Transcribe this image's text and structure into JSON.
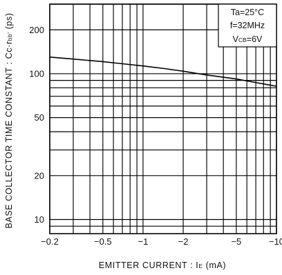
{
  "chart_data": {
    "type": "line",
    "xlabel_main": "EMITTER  CURRENT : I",
    "xlabel_sub": "E",
    "xlabel_unit": " (mA)",
    "ylabel_main": "BASE  COLLECTOR  TIME  CONSTANT : Cc·r",
    "ylabel_sub": "bb'",
    "ylabel_unit": " (ps)",
    "x_scale": "log",
    "y_scale": "log",
    "xlim": [
      -0.2,
      -10
    ],
    "ylim": [
      8,
      300
    ],
    "x_ticks": [
      {
        "value": -0.2,
        "label": "−0.2"
      },
      {
        "value": -0.5,
        "label": "−0.5"
      },
      {
        "value": -1,
        "label": "−1"
      },
      {
        "value": -2,
        "label": "−2"
      },
      {
        "value": -5,
        "label": "−5"
      },
      {
        "value": -10,
        "label": "−10"
      }
    ],
    "y_ticks": [
      {
        "value": 10,
        "label": "10"
      },
      {
        "value": 20,
        "label": "20"
      },
      {
        "value": 50,
        "label": "50"
      },
      {
        "value": 100,
        "label": "100"
      },
      {
        "value": 200,
        "label": "200"
      }
    ],
    "x_grid": [
      -0.2,
      -0.3,
      -0.4,
      -0.5,
      -0.6,
      -0.7,
      -0.8,
      -0.9,
      -1,
      -2,
      -3,
      -4,
      -5,
      -6,
      -7,
      -8,
      -9,
      -10
    ],
    "y_grid": [
      9,
      10,
      20,
      30,
      40,
      50,
      60,
      70,
      80,
      90,
      100,
      200,
      300
    ],
    "grid": true,
    "annotations": [
      {
        "main": "Ta=25°C",
        "sub": ""
      },
      {
        "main": "f=32MHz",
        "sub": ""
      },
      {
        "main": "V",
        "sub": "CB",
        "tail": "=6V"
      }
    ],
    "annotation_position": "top-right",
    "series": [
      {
        "x": [
          -0.2,
          -0.3,
          -0.5,
          -0.7,
          -1,
          -1.5,
          -2,
          -3,
          -5,
          -7,
          -10
        ],
        "y": [
          130,
          126,
          121,
          117,
          113,
          108,
          104,
          98,
          92,
          87,
          82
        ]
      }
    ]
  }
}
